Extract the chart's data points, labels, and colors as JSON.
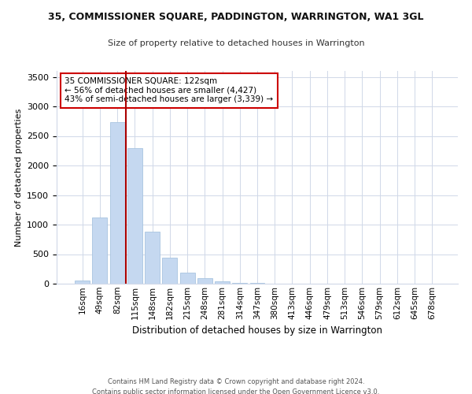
{
  "title": "35, COMMISSIONER SQUARE, PADDINGTON, WARRINGTON, WA1 3GL",
  "subtitle": "Size of property relative to detached houses in Warrington",
  "xlabel": "Distribution of detached houses by size in Warrington",
  "ylabel": "Number of detached properties",
  "bar_labels": [
    "16sqm",
    "49sqm",
    "82sqm",
    "115sqm",
    "148sqm",
    "182sqm",
    "215sqm",
    "248sqm",
    "281sqm",
    "314sqm",
    "347sqm",
    "380sqm",
    "413sqm",
    "446sqm",
    "479sqm",
    "513sqm",
    "546sqm",
    "579sqm",
    "612sqm",
    "645sqm",
    "678sqm"
  ],
  "bar_values": [
    50,
    1120,
    2730,
    2290,
    880,
    435,
    185,
    100,
    40,
    18,
    8,
    0,
    0,
    0,
    0,
    0,
    0,
    0,
    0,
    0,
    0
  ],
  "bar_color": "#c5d8f0",
  "bar_edge_color": "#a8c4e0",
  "vline_x": 2.5,
  "vline_color": "#aa0000",
  "annotation_text": "35 COMMISSIONER SQUARE: 122sqm\n← 56% of detached houses are smaller (4,427)\n43% of semi-detached houses are larger (3,339) →",
  "annotation_box_facecolor": "#ffffff",
  "annotation_box_edgecolor": "#cc0000",
  "ylim": [
    0,
    3600
  ],
  "yticks": [
    0,
    500,
    1000,
    1500,
    2000,
    2500,
    3000,
    3500
  ],
  "footer_line1": "Contains HM Land Registry data © Crown copyright and database right 2024.",
  "footer_line2": "Contains public sector information licensed under the Open Government Licence v3.0.",
  "background_color": "#ffffff",
  "grid_color": "#d0d8e8"
}
